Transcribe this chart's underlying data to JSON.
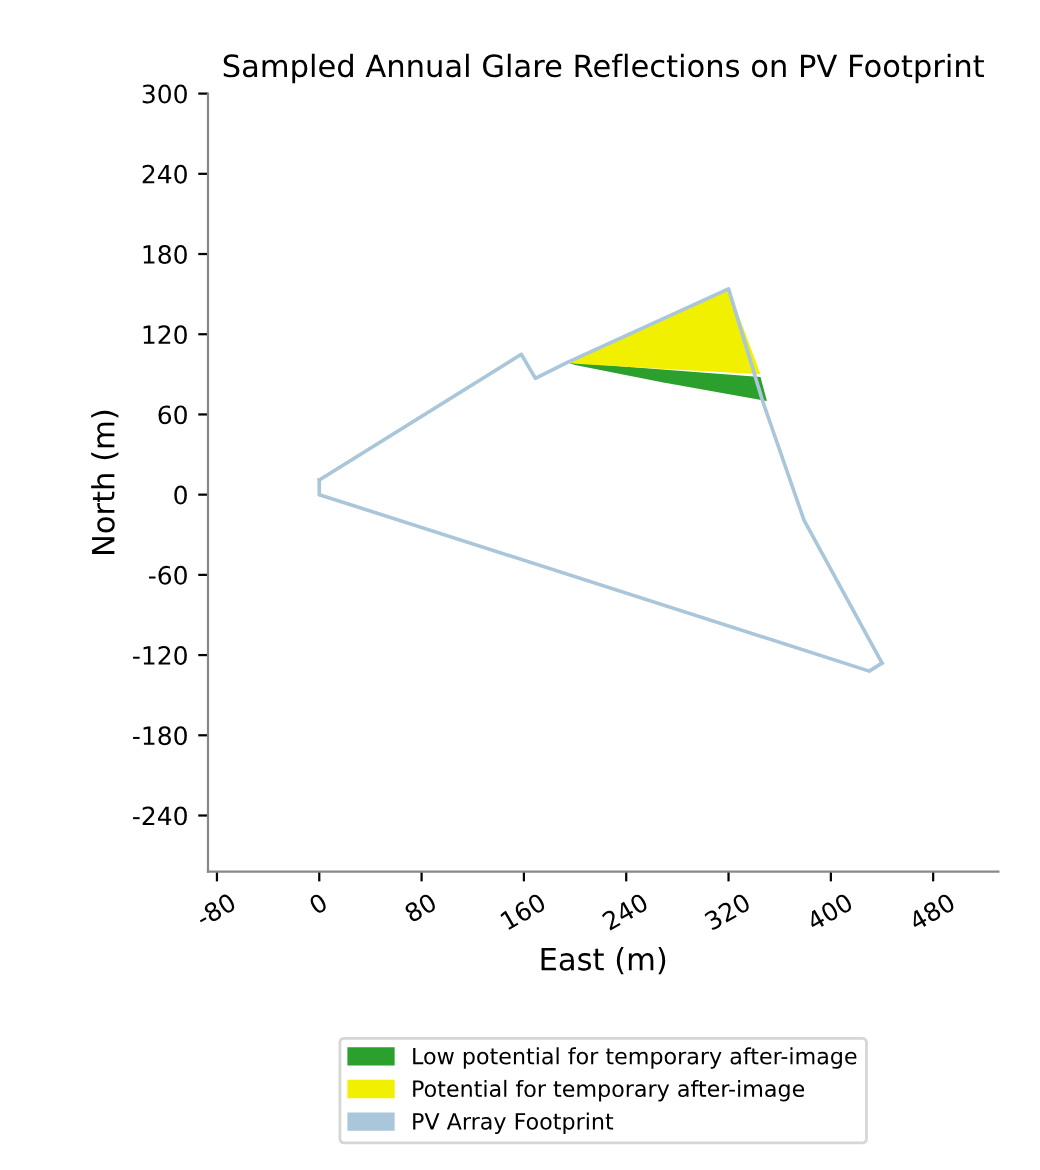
{
  "chart_data": {
    "type": "line",
    "title": "Sampled Annual Glare Reflections on PV Footprint",
    "xlabel": "East (m)",
    "ylabel": "North (m)",
    "series": [
      {
        "name": "Low potential for temporary after-image",
        "color": "#2ca02c",
        "type": "area",
        "x": [
          194,
          345,
          350,
          268,
          200
        ],
        "values": [
          99,
          88,
          70,
          84,
          97
        ]
      },
      {
        "name": "Potential for temporary after-image",
        "color": "#f0f000",
        "type": "area",
        "x": [
          194,
          320,
          345,
          270,
          200
        ],
        "values": [
          99,
          154,
          90,
          94,
          98
        ]
      },
      {
        "name": "PV Array Footprint",
        "color": "#a9c6da",
        "x": [
          0,
          158,
          169,
          194,
          320,
          347,
          379,
          440
        ],
        "values": [
          11,
          105,
          87,
          99,
          154,
          69,
          -19,
          -126
        ]
      },
      {
        "color": "#a9c6da",
        "x": [
          0,
          0,
          430,
          440
        ],
        "values": [
          11,
          0,
          -132,
          -126
        ]
      }
    ],
    "xlim": [
      -87,
      531
    ],
    "ylim": [
      -282,
      300
    ],
    "xticks": [
      -80,
      0,
      80,
      160,
      240,
      320,
      400,
      480
    ],
    "yticks": [
      -240,
      -180,
      -120,
      -60,
      0,
      60,
      120,
      180,
      240,
      300
    ],
    "grid": false,
    "legend": "bottom"
  }
}
